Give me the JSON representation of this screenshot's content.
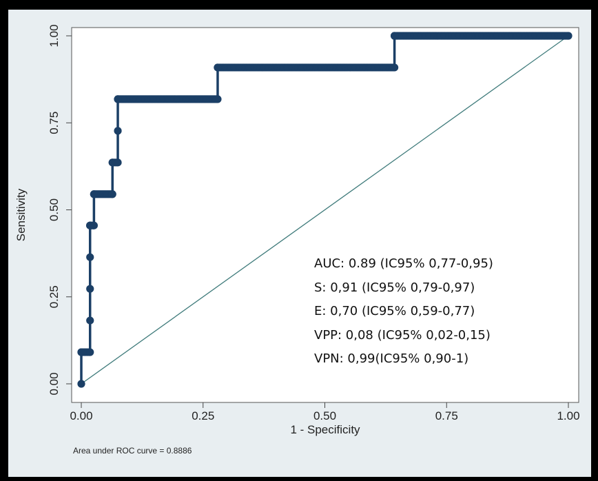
{
  "chart_data": {
    "type": "line",
    "xlabel": "1 - Specificity",
    "ylabel": "Sensitivity",
    "xlim": [
      0,
      1
    ],
    "ylim": [
      0,
      1
    ],
    "x_ticks": [
      "0.00",
      "0.25",
      "0.50",
      "0.75",
      "1.00"
    ],
    "y_ticks": [
      "0.00",
      "0.25",
      "0.50",
      "0.75",
      "1.00"
    ],
    "x_tick_values": [
      0,
      0.25,
      0.5,
      0.75,
      1
    ],
    "y_tick_values": [
      0,
      0.25,
      0.5,
      0.75,
      1
    ],
    "grid": false,
    "series": [
      {
        "type": "roc-step",
        "color": "#1b3f66",
        "x": [
          0,
          0,
          0.018,
          0.018,
          0.018,
          0.018,
          0.018,
          0.018,
          0.018,
          0.026,
          0.026,
          0.064,
          0.064,
          0.075,
          0.075,
          0.075,
          0.28,
          0.28,
          0.643,
          0.643,
          1.0
        ],
        "y": [
          0,
          0.091,
          0.091,
          0.182,
          0.273,
          0.364,
          0.455,
          0.455,
          0.455,
          0.455,
          0.545,
          0.545,
          0.636,
          0.636,
          0.727,
          0.818,
          0.818,
          0.909,
          0.909,
          1.0,
          1.0
        ]
      },
      {
        "type": "reference",
        "color": "#3f7b7b",
        "x": [
          0,
          1
        ],
        "y": [
          0,
          1
        ]
      }
    ],
    "annotations": [
      "AUC: 0.89 (IC95% 0,77-0,95)",
      "S: 0,91 (IC95%  0,79-0,97)",
      "E: 0,70 (IC95% 0,59-0,77)",
      "VPP: 0,08 (IC95% 0,02-0,15)",
      "VPN: 0,99(IC95% 0,90-1)"
    ],
    "note": "Area under ROC curve = 0.8886"
  }
}
